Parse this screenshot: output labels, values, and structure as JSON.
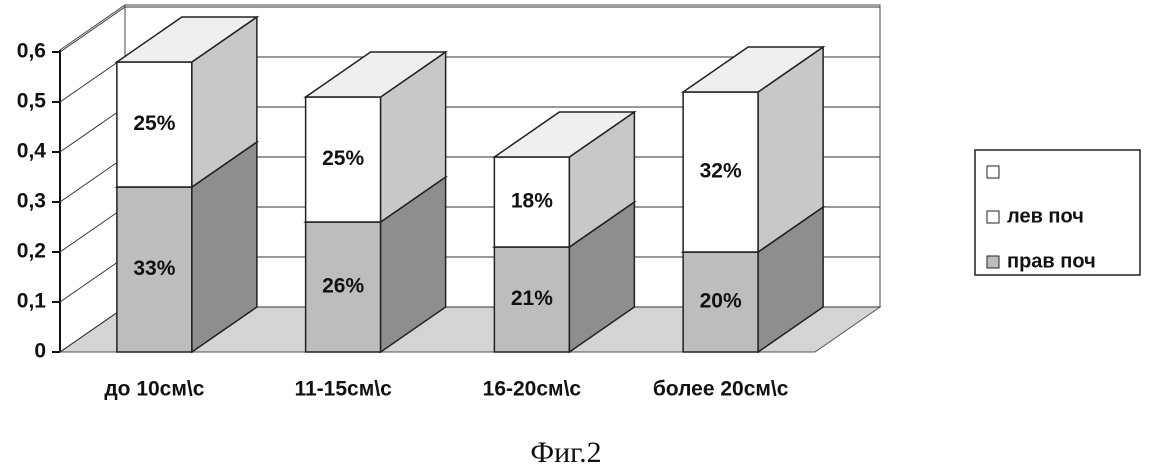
{
  "chart_data": {
    "type": "bar",
    "stacked": true,
    "three_d": true,
    "caption": "Фиг.2",
    "categories": [
      "до 10см\\с",
      "11-15см\\с",
      "16-20см\\с",
      "более 20см\\с"
    ],
    "series": [
      {
        "name": "прав поч",
        "color": "#bdbdbd",
        "values": [
          0.33,
          0.26,
          0.21,
          0.2
        ],
        "value_labels": [
          "33%",
          "26%",
          "21%",
          "20%"
        ]
      },
      {
        "name": "лев поч",
        "color": "#ffffff",
        "values": [
          0.25,
          0.25,
          0.18,
          0.32
        ],
        "value_labels": [
          "25%",
          "25%",
          "18%",
          "32%"
        ]
      }
    ],
    "ylim": [
      0,
      0.6
    ],
    "yticks": [
      0,
      {
        "value": 0.1,
        "label": "0,1"
      },
      {
        "value": 0.2,
        "label": "0,2"
      },
      {
        "value": 0.3,
        "label": "0,3"
      },
      {
        "value": 0.4,
        "label": "0,4"
      },
      {
        "value": 0.5,
        "label": "0,5"
      },
      {
        "value": 0.6,
        "label": "0,6"
      }
    ],
    "grid": true,
    "legend": "right"
  }
}
